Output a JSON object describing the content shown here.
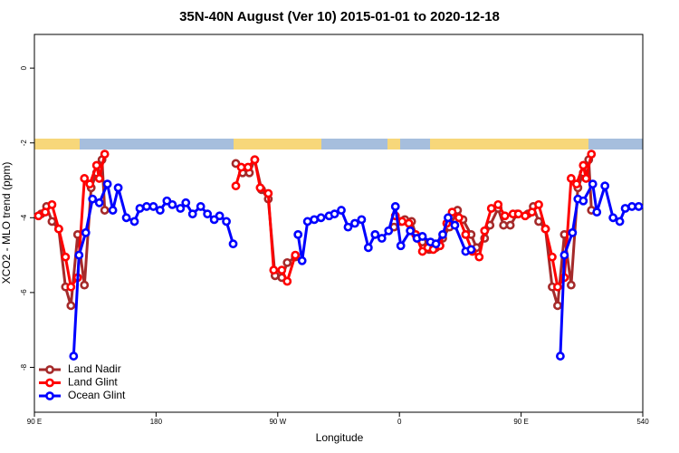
{
  "chart_data": {
    "type": "line",
    "title": "35N-40N August (Ver 10)   2015-01-01 to 2020-12-18",
    "x_label": "Longitude",
    "y_label": "XCO2 - MLO trend (ppm)",
    "xlim": [
      90,
      540
    ],
    "ylim": [
      -9.2,
      0.9
    ],
    "xticks": [
      {
        "value": 90,
        "label": "90 E"
      },
      180,
      {
        "value": 270,
        "label": "90 W"
      },
      {
        "value": 360,
        "label": "0"
      },
      {
        "value": 450,
        "label": "90 E"
      },
      540
    ],
    "yticks": [
      0,
      -2,
      -4,
      -6,
      -8
    ],
    "legend": "bottom-left",
    "series": [
      {
        "name": "Land Nadir",
        "color": "#a52a2a",
        "x": [
          95,
          99,
          103,
          108,
          113,
          117,
          122,
          127,
          132,
          136,
          140,
          142,
          null,
          239,
          244,
          249,
          253,
          258,
          263,
          268,
          273,
          277,
          283,
          null,
          356,
          361,
          364,
          369,
          373,
          377,
          382,
          387,
          392,
          397,
          403,
          407,
          413,
          417,
          423,
          427,
          433,
          437,
          442,
          447,
          455,
          459,
          463,
          468,
          473,
          477,
          482,
          487,
          492,
          496,
          500,
          502
        ],
        "values": [
          -3.9,
          -3.7,
          -4.1,
          -4.3,
          -5.85,
          -6.35,
          -4.45,
          -5.8,
          -3.2,
          -2.8,
          -2.45,
          -3.8,
          null,
          -2.55,
          -2.8,
          -2.8,
          -2.45,
          -3.25,
          -3.5,
          -5.55,
          -5.6,
          -5.2,
          -5.05,
          null,
          -4.25,
          -4.1,
          -4.05,
          -4.1,
          -4.55,
          -4.65,
          -4.85,
          -4.8,
          -4.55,
          -4.25,
          -3.8,
          -4.05,
          -4.45,
          -4.8,
          -4.55,
          -4.2,
          -3.75,
          -4.2,
          -4.2,
          -3.9,
          -3.9,
          -3.7,
          -4.1,
          -4.3,
          -5.85,
          -6.35,
          -4.45,
          -5.8,
          -3.2,
          -2.8,
          -2.45,
          -3.8
        ]
      },
      {
        "name": "Land Glint",
        "color": "#ff0000",
        "x": [
          93,
          98,
          103,
          108,
          113,
          117,
          122,
          127,
          131,
          136,
          138,
          142,
          null,
          239,
          243,
          248,
          253,
          257,
          263,
          267,
          273,
          277,
          283,
          null,
          357,
          362,
          367,
          372,
          377,
          381,
          385,
          390,
          395,
          399,
          404,
          409,
          414,
          419,
          423,
          428,
          433,
          438,
          444,
          448,
          453,
          458,
          463,
          468,
          473,
          477,
          482,
          487,
          491,
          496,
          498,
          502
        ],
        "values": [
          -3.95,
          -3.85,
          -3.65,
          -4.3,
          -5.05,
          -5.85,
          -5.6,
          -2.95,
          -3.1,
          -2.6,
          -2.95,
          -2.3,
          null,
          -3.15,
          -2.65,
          -2.65,
          -2.45,
          -3.2,
          -3.35,
          -5.4,
          -5.4,
          -5.7,
          -5.0,
          null,
          -3.95,
          -4.1,
          -4.15,
          -4.45,
          -4.9,
          -4.8,
          -4.85,
          -4.75,
          -4.15,
          -3.85,
          -4.0,
          -4.45,
          -4.9,
          -5.05,
          -4.35,
          -3.75,
          -3.65,
          -3.95,
          -3.9,
          -3.9,
          -3.95,
          -3.85,
          -3.65,
          -4.3,
          -5.05,
          -5.85,
          -5.6,
          -2.95,
          -3.1,
          -2.6,
          -2.95,
          -2.3
        ]
      },
      {
        "name": "Ocean Glint",
        "color": "#0000ff",
        "x": [
          119,
          123,
          128,
          133,
          138,
          144,
          148,
          152,
          158,
          164,
          168,
          173,
          178,
          183,
          188,
          192,
          198,
          202,
          207,
          213,
          218,
          223,
          227,
          232,
          237,
          null,
          285,
          288,
          292,
          297,
          302,
          308,
          312,
          317,
          322,
          327,
          332,
          337,
          342,
          347,
          352,
          357,
          361,
          368,
          373,
          377,
          383,
          387,
          392,
          396,
          401,
          409,
          413,
          null,
          479,
          482,
          488,
          492,
          496,
          503,
          506,
          512,
          518,
          523,
          527,
          532,
          537
        ],
        "values": [
          -7.7,
          -5.0,
          -4.4,
          -3.5,
          -3.6,
          -3.1,
          -3.8,
          -3.2,
          -4.0,
          -4.1,
          -3.75,
          -3.7,
          -3.7,
          -3.8,
          -3.55,
          -3.65,
          -3.75,
          -3.6,
          -3.9,
          -3.7,
          -3.9,
          -4.05,
          -3.95,
          -4.1,
          -4.7,
          null,
          -4.45,
          -5.15,
          -4.1,
          -4.05,
          -4.0,
          -3.95,
          -3.9,
          -3.8,
          -4.25,
          -4.15,
          -4.05,
          -4.8,
          -4.45,
          -4.55,
          -4.35,
          -3.7,
          -4.75,
          -4.35,
          -4.55,
          -4.5,
          -4.65,
          -4.7,
          -4.45,
          -4.0,
          -4.2,
          -4.9,
          -4.85,
          null,
          -7.7,
          -5.0,
          -4.4,
          -3.5,
          -3.55,
          -3.1,
          -3.85,
          -3.15,
          -4.0,
          -4.1,
          -3.75,
          -3.7,
          -3.7
        ]
      }
    ]
  }
}
